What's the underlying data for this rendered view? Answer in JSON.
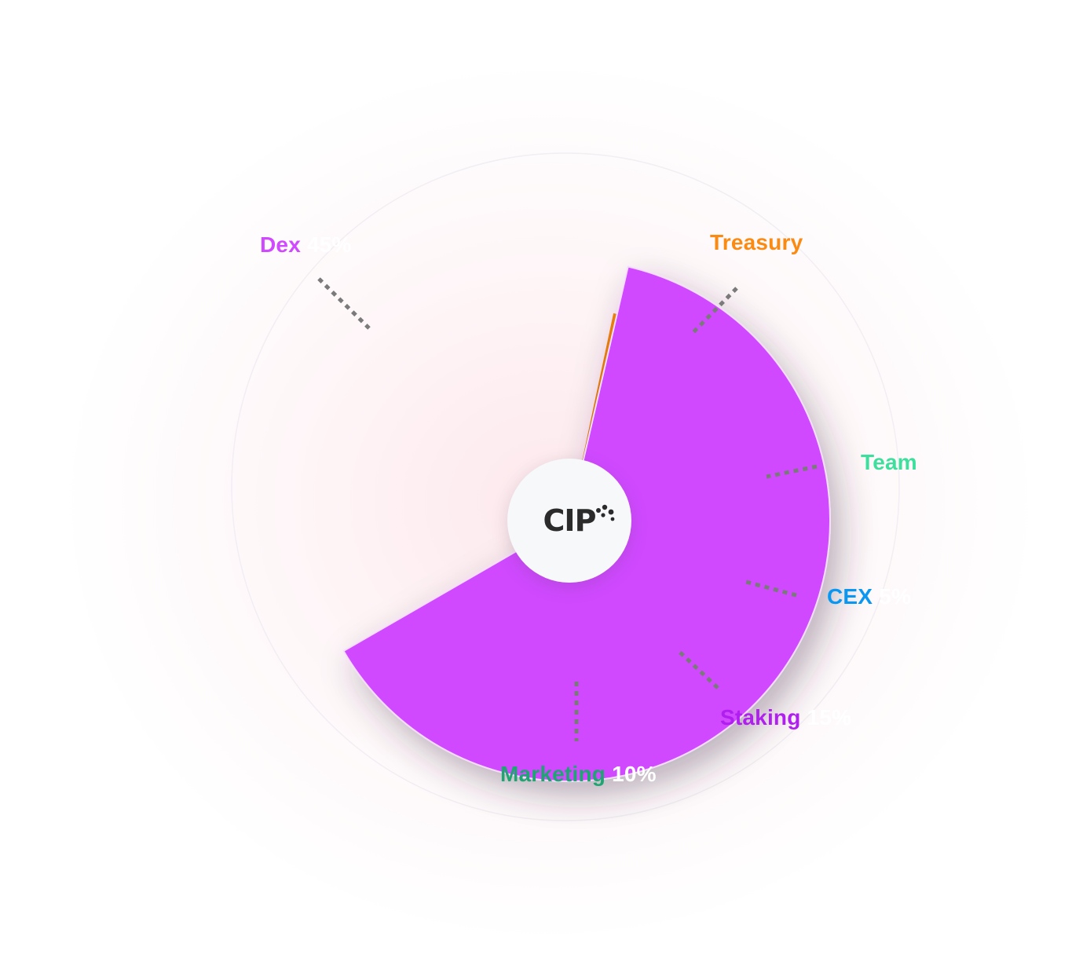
{
  "logo": {
    "text": "CIP"
  },
  "chart_data": {
    "type": "pie",
    "title": "",
    "slices": [
      {
        "label": "Dex",
        "value_label": "45%",
        "value": 45,
        "color": "#d048ff"
      },
      {
        "label": "Treasury",
        "value_label": "",
        "value": null,
        "color": "#fb8a12"
      },
      {
        "label": "Team",
        "value_label": "",
        "value": null,
        "color": "#3ddf9c"
      },
      {
        "label": "CEX",
        "value_label": "5%",
        "value": 5,
        "color": "#0a97f2"
      },
      {
        "label": "Staking",
        "value_label": "15%",
        "value": 15,
        "color": "#b01ef0"
      },
      {
        "label": "Marketing",
        "value_label": "10%",
        "value": 10,
        "color": "#1ea672"
      },
      {
        "label": "",
        "value_label": "",
        "value": null,
        "color": "#c3c9f2"
      }
    ]
  }
}
